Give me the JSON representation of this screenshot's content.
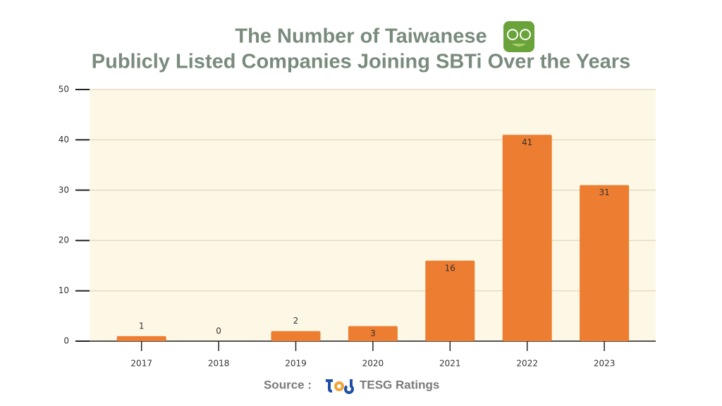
{
  "chart_data": {
    "type": "bar",
    "title_lines": [
      "The Number of Taiwanese",
      "Publicly Listed Companies Joining SBTi Over the Years"
    ],
    "categories": [
      "2017",
      "2018",
      "2019",
      "2020",
      "2021",
      "2022",
      "2023"
    ],
    "values": [
      1,
      0,
      2,
      3,
      16,
      41,
      31
    ],
    "color": "#ed7d31",
    "ylim": [
      0,
      50
    ],
    "yticks": [
      0,
      10,
      20,
      30,
      40,
      50
    ],
    "grid": true,
    "source_label": "Source :",
    "source": "TESG Ratings"
  }
}
